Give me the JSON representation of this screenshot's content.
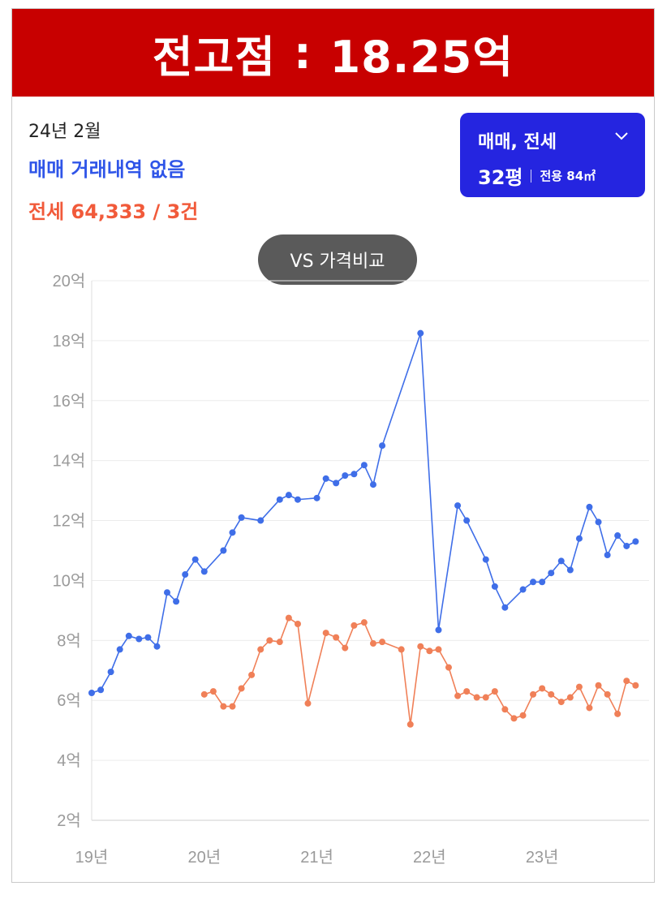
{
  "header": {
    "label": "전고점",
    "separator": ":",
    "value": "18.25억"
  },
  "info": {
    "date": "24년 2월",
    "sale_status": "매매 거래내역 없음",
    "jeonse_status": "전세 64,333 / 3건"
  },
  "selector": {
    "type_label": "매매, 전세",
    "size_label": "32평",
    "area_label": "전용 84㎡"
  },
  "compare_button": {
    "label": "VS 가격비교"
  },
  "colors": {
    "banner": "#c80000",
    "sale_series": "#3f6ee8",
    "jeonse_series": "#f08058",
    "selector_bg": "#2525e0"
  },
  "chart_data": {
    "type": "line",
    "y_unit": "억",
    "ylim": [
      2,
      20
    ],
    "yticks": [
      2,
      4,
      6,
      8,
      10,
      12,
      14,
      16,
      18,
      20
    ],
    "ytick_labels": [
      "2억",
      "4억",
      "6억",
      "8억",
      "10억",
      "12억",
      "14억",
      "16억",
      "18억",
      "20억"
    ],
    "xlim": [
      2019.0,
      2023.95
    ],
    "xticks": [
      2019.0,
      2020.0,
      2021.0,
      2022.0,
      2023.0
    ],
    "xtick_labels": [
      "19년",
      "20년",
      "21년",
      "22년",
      "23년"
    ],
    "grid": true,
    "series": [
      {
        "name": "매매",
        "color": "#3f6ee8",
        "points": [
          [
            2019.0,
            6.25
          ],
          [
            2019.08,
            6.35
          ],
          [
            2019.17,
            6.95
          ],
          [
            2019.25,
            7.7
          ],
          [
            2019.33,
            8.15
          ],
          [
            2019.42,
            8.05
          ],
          [
            2019.5,
            8.1
          ],
          [
            2019.58,
            7.8
          ],
          [
            2019.67,
            9.6
          ],
          [
            2019.75,
            9.3
          ],
          [
            2019.83,
            10.2
          ],
          [
            2019.92,
            10.7
          ],
          [
            2020.0,
            10.3
          ],
          [
            2020.17,
            11.0
          ],
          [
            2020.25,
            11.6
          ],
          [
            2020.33,
            12.1
          ],
          [
            2020.5,
            12.0
          ],
          [
            2020.67,
            12.7
          ],
          [
            2020.75,
            12.85
          ],
          [
            2020.83,
            12.7
          ],
          [
            2021.0,
            12.75
          ],
          [
            2021.08,
            13.4
          ],
          [
            2021.17,
            13.25
          ],
          [
            2021.25,
            13.5
          ],
          [
            2021.33,
            13.55
          ],
          [
            2021.42,
            13.85
          ],
          [
            2021.5,
            13.2
          ],
          [
            2021.58,
            14.5
          ],
          [
            2021.92,
            18.25
          ],
          [
            2022.08,
            8.35
          ],
          [
            2022.25,
            12.5
          ],
          [
            2022.33,
            12.0
          ],
          [
            2022.5,
            10.7
          ],
          [
            2022.58,
            9.8
          ],
          [
            2022.67,
            9.1
          ],
          [
            2022.83,
            9.7
          ],
          [
            2022.92,
            9.95
          ],
          [
            2023.0,
            9.95
          ],
          [
            2023.08,
            10.25
          ],
          [
            2023.17,
            10.65
          ],
          [
            2023.25,
            10.35
          ],
          [
            2023.33,
            11.4
          ],
          [
            2023.42,
            12.45
          ],
          [
            2023.5,
            11.95
          ],
          [
            2023.58,
            10.85
          ],
          [
            2023.67,
            11.5
          ],
          [
            2023.75,
            11.15
          ],
          [
            2023.83,
            11.3
          ]
        ]
      },
      {
        "name": "전세",
        "color": "#f08058",
        "points": [
          [
            2020.0,
            6.2
          ],
          [
            2020.08,
            6.3
          ],
          [
            2020.17,
            5.8
          ],
          [
            2020.25,
            5.8
          ],
          [
            2020.33,
            6.4
          ],
          [
            2020.42,
            6.85
          ],
          [
            2020.5,
            7.7
          ],
          [
            2020.58,
            8.0
          ],
          [
            2020.67,
            7.95
          ],
          [
            2020.75,
            8.75
          ],
          [
            2020.83,
            8.55
          ],
          [
            2020.92,
            5.9
          ],
          [
            2021.08,
            8.25
          ],
          [
            2021.17,
            8.1
          ],
          [
            2021.25,
            7.75
          ],
          [
            2021.33,
            8.5
          ],
          [
            2021.42,
            8.6
          ],
          [
            2021.5,
            7.9
          ],
          [
            2021.58,
            7.95
          ],
          [
            2021.75,
            7.7
          ],
          [
            2021.83,
            5.2
          ],
          [
            2021.92,
            7.8
          ],
          [
            2022.0,
            7.65
          ],
          [
            2022.08,
            7.7
          ],
          [
            2022.17,
            7.1
          ],
          [
            2022.25,
            6.15
          ],
          [
            2022.33,
            6.3
          ],
          [
            2022.42,
            6.1
          ],
          [
            2022.5,
            6.1
          ],
          [
            2022.58,
            6.3
          ],
          [
            2022.67,
            5.7
          ],
          [
            2022.75,
            5.4
          ],
          [
            2022.83,
            5.5
          ],
          [
            2022.92,
            6.2
          ],
          [
            2023.0,
            6.4
          ],
          [
            2023.08,
            6.2
          ],
          [
            2023.17,
            5.95
          ],
          [
            2023.25,
            6.1
          ],
          [
            2023.33,
            6.45
          ],
          [
            2023.42,
            5.75
          ],
          [
            2023.5,
            6.5
          ],
          [
            2023.58,
            6.2
          ],
          [
            2023.67,
            5.55
          ],
          [
            2023.75,
            6.65
          ],
          [
            2023.83,
            6.5
          ]
        ]
      }
    ]
  }
}
